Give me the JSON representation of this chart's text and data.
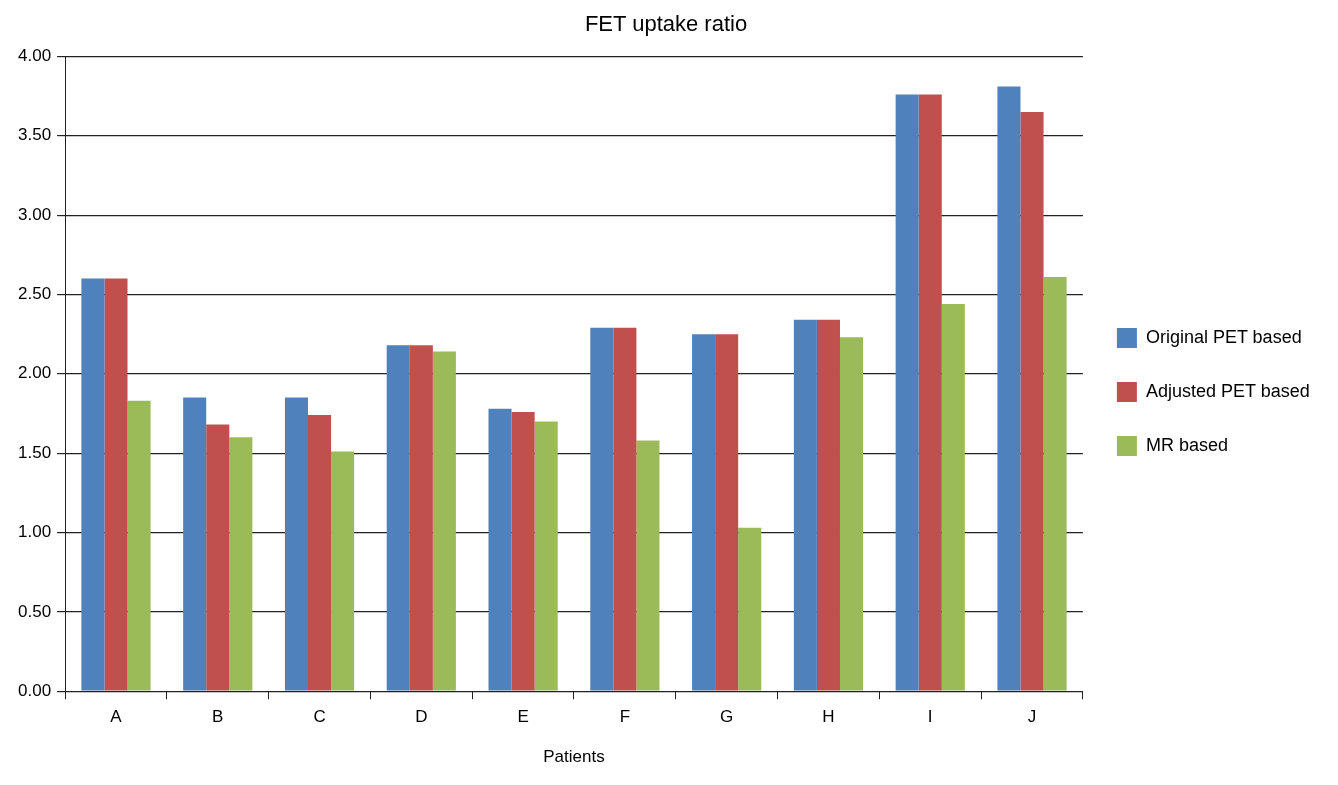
{
  "chart_data": {
    "type": "bar",
    "title": "FET uptake ratio",
    "xlabel": "Patients",
    "categories": [
      "A",
      "B",
      "C",
      "D",
      "E",
      "F",
      "G",
      "H",
      "I",
      "J"
    ],
    "series": [
      {
        "name": "Original PET based",
        "color": "#4f81bd",
        "values": [
          2.6,
          1.85,
          1.85,
          2.18,
          1.78,
          2.29,
          2.25,
          2.34,
          3.76,
          3.81
        ]
      },
      {
        "name": "Adjusted PET based",
        "color": "#c0504d",
        "values": [
          2.6,
          1.68,
          1.74,
          2.18,
          1.76,
          2.29,
          2.25,
          2.34,
          3.76,
          3.65
        ]
      },
      {
        "name": "MR based",
        "color": "#9bbb59",
        "values": [
          1.83,
          1.6,
          1.51,
          2.14,
          1.7,
          1.58,
          1.03,
          2.23,
          2.44,
          2.61
        ]
      }
    ],
    "ylim": [
      0,
      4
    ],
    "yticks": [
      {
        "value": 0,
        "label": "0.00"
      },
      {
        "value": 0.5,
        "label": "0.50"
      },
      {
        "value": 1,
        "label": "1.00"
      },
      {
        "value": 1.5,
        "label": "1.50"
      },
      {
        "value": 2,
        "label": "2.00"
      },
      {
        "value": 2.5,
        "label": "2.50"
      },
      {
        "value": 3,
        "label": "3.00"
      },
      {
        "value": 3.5,
        "label": "3.50"
      },
      {
        "value": 4,
        "label": "4.00"
      }
    ],
    "grid": "y",
    "legend": "right"
  }
}
